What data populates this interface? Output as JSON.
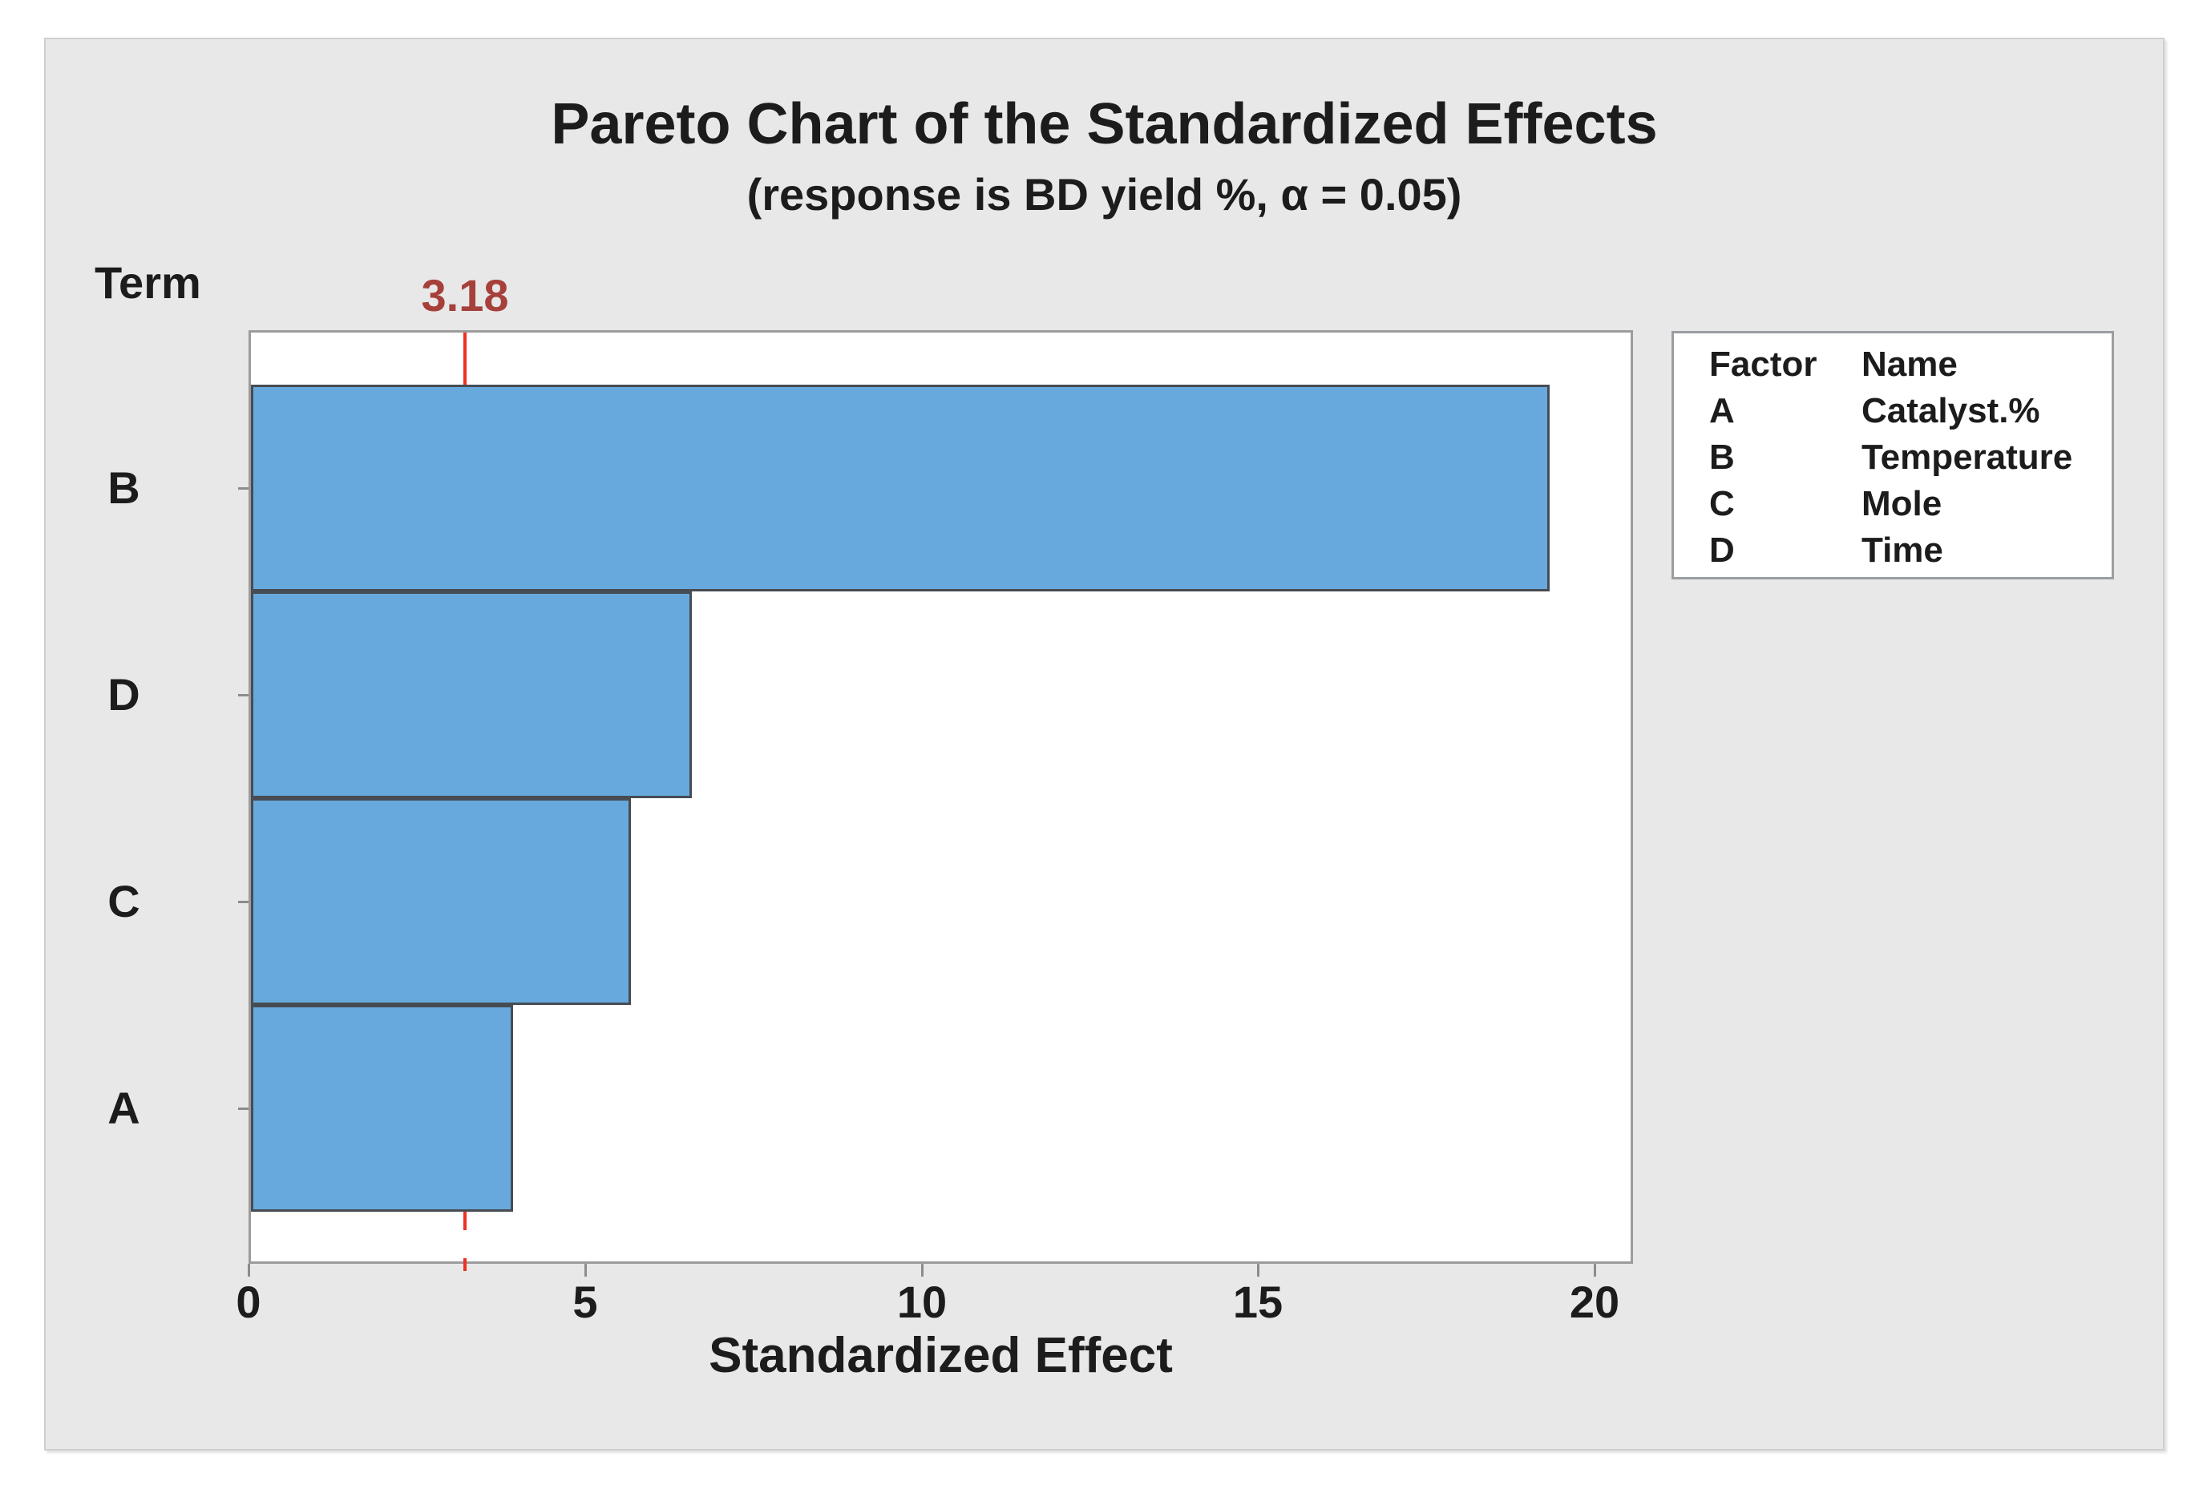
{
  "chart_data": {
    "type": "bar",
    "orientation": "horizontal",
    "title": "Pareto Chart of the Standardized Effects",
    "subtitle": "(response is BD yield %, α = 0.05)",
    "xlabel": "Standardized Effect",
    "ylabel": "Term",
    "categories": [
      "B",
      "D",
      "C",
      "A"
    ],
    "values": [
      19.3,
      6.55,
      5.65,
      3.9
    ],
    "x_ticks": [
      0,
      5,
      10,
      15,
      20
    ],
    "xlim": [
      0,
      20.5
    ],
    "grid": false,
    "legend_position": "right",
    "reference_line": {
      "value": 3.18,
      "label": "3.18",
      "style": "dashed",
      "color": "#F03024",
      "label_color": "#A6403B"
    },
    "bar_fill": "#67A9DC",
    "bar_border": "#474C53",
    "colors": {
      "panel_background": "#E8E8E8",
      "plot_background": "#FFFFFF",
      "plot_border": "#9C9C9C",
      "text": "#1C1C1C"
    },
    "legend": {
      "headers": [
        "Factor",
        "Name"
      ],
      "rows": [
        {
          "factor": "A",
          "name": "Catalyst.%"
        },
        {
          "factor": "B",
          "name": "Temperature"
        },
        {
          "factor": "C",
          "name": "Mole"
        },
        {
          "factor": "D",
          "name": "Time"
        }
      ]
    }
  }
}
